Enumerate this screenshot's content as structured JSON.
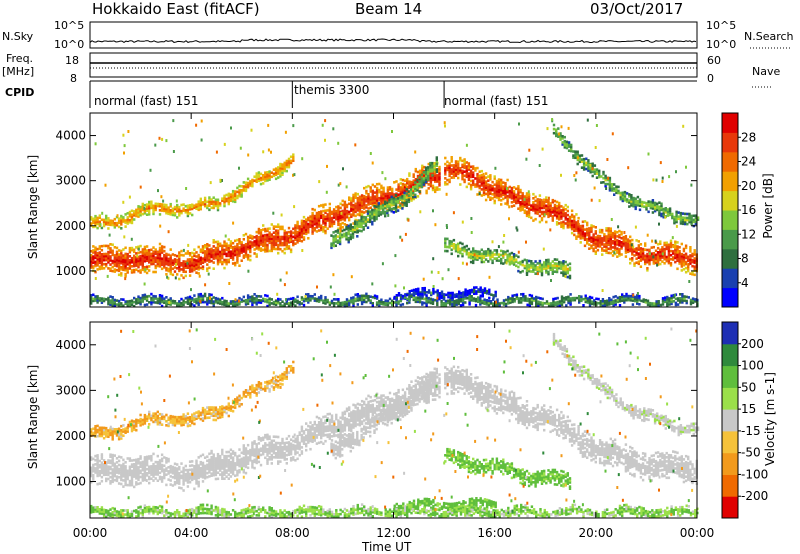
{
  "header": {
    "title": "Hokkaido East (fitACF)",
    "beam": "Beam 14",
    "date": "03/Oct/2017"
  },
  "strips": {
    "nsky_label": "N.Sky",
    "nsearch_label": "N.Search",
    "freq_label_1": "Freq.",
    "freq_label_2": "[MHz]",
    "nave_label": "Nave",
    "cpid_label": "CPID",
    "nsky_ticks": [
      "10^5",
      "10^0"
    ],
    "nsearch_ticks": [
      "10^5",
      "10^0"
    ],
    "freq_ticks": [
      "18",
      "8"
    ],
    "nave_ticks": [
      "60",
      "0"
    ],
    "cpid_segments": [
      {
        "label": "normal (fast) 151",
        "start_hour": 0
      },
      {
        "label": "themis 3300",
        "start_hour": 8
      },
      {
        "label": "normal (fast) 151",
        "start_hour": 14
      }
    ]
  },
  "chart_data": [
    {
      "type": "heatmap",
      "panel": "power",
      "ylabel": "Slant Range [km]",
      "xlabel": "Time UT",
      "xlim": [
        0,
        24
      ],
      "ylim": [
        200,
        4500
      ],
      "xticks": [
        "00:00",
        "04:00",
        "08:00",
        "12:00",
        "16:00",
        "20:00",
        "00:00"
      ],
      "yticks": [
        "1000",
        "2000",
        "3000",
        "4000"
      ],
      "colorbar_label": "Power [dB]",
      "colorbar_ticks": [
        "28",
        "24",
        "20",
        "16",
        "12",
        "8",
        "4"
      ],
      "colorbar_range": [
        0,
        30
      ],
      "colors": [
        "#0000ff",
        "#1a40b0",
        "#2f6f3f",
        "#4a9a4a",
        "#7ec83c",
        "#d7d21d",
        "#f2a000",
        "#f06a00",
        "#e8380a",
        "#e00000"
      ],
      "bands": [
        {
          "t": [
            0,
            2,
            4,
            6,
            8,
            10,
            12,
            13.8
          ],
          "r": [
            1200,
            1250,
            1150,
            1500,
            1800,
            2300,
            2700,
            3100
          ],
          "width": 320,
          "level": 27
        },
        {
          "t": [
            0,
            1,
            2,
            3,
            4,
            5,
            6,
            7,
            8
          ],
          "r": [
            2000,
            2100,
            2300,
            2400,
            2350,
            2500,
            2800,
            3100,
            3500
          ],
          "width": 150,
          "level": 22
        },
        {
          "t": [
            14,
            15,
            16,
            17,
            18,
            19,
            20,
            21,
            22,
            24
          ],
          "r": [
            3200,
            3100,
            2800,
            2500,
            2400,
            2000,
            1700,
            1500,
            1350,
            1250
          ],
          "width": 300,
          "level": 27
        },
        {
          "t": [
            14,
            15,
            16,
            17,
            18,
            19
          ],
          "r": [
            1500,
            1400,
            1300,
            1150,
            1050,
            1000
          ],
          "width": 170,
          "level": 16
        },
        {
          "t": [
            18.3,
            19,
            20,
            21,
            22,
            24
          ],
          "r": [
            4100,
            3700,
            3100,
            2700,
            2400,
            2100
          ],
          "width": 150,
          "level": 14
        },
        {
          "t": [
            9.5,
            10.5,
            11.5,
            12.5,
            13.7
          ],
          "r": [
            1600,
            2000,
            2300,
            2700,
            3300
          ],
          "width": 200,
          "level": 14
        },
        {
          "t": [
            12,
            13,
            14,
            15,
            16
          ],
          "r": [
            480,
            470,
            480,
            490,
            480
          ],
          "width": 110,
          "level": 6
        },
        {
          "t": [
            0,
            4,
            8,
            12,
            16,
            20,
            24
          ],
          "r": [
            300,
            310,
            300,
            320,
            300,
            310,
            300
          ],
          "width": 120,
          "level": 11
        }
      ]
    },
    {
      "type": "heatmap",
      "panel": "velocity",
      "ylabel": "Slant Range [km]",
      "xlabel": "Time UT",
      "xlim": [
        0,
        24
      ],
      "ylim": [
        200,
        4500
      ],
      "xticks": [
        "00:00",
        "04:00",
        "08:00",
        "12:00",
        "16:00",
        "20:00",
        "00:00"
      ],
      "yticks": [
        "1000",
        "2000",
        "3000",
        "4000"
      ],
      "colorbar_label": "Velocity [m s-1]",
      "colorbar_ticks": [
        "200",
        "100",
        "50",
        "15",
        "-15",
        "-50",
        "-100",
        "-200"
      ],
      "colors": [
        "#1e2fb4",
        "#2f8a3c",
        "#5fbe3c",
        "#9be04a",
        "#c8c8c8",
        "#f5c23a",
        "#f29a1c",
        "#f06a00",
        "#e00000"
      ],
      "bands": [
        {
          "t": [
            0,
            2,
            4,
            6,
            8,
            10,
            12,
            13.8
          ],
          "r": [
            1200,
            1250,
            1150,
            1500,
            1800,
            2300,
            2700,
            3100
          ],
          "width": 320,
          "level": 0
        },
        {
          "t": [
            0,
            1,
            2,
            3,
            4,
            5,
            6,
            7,
            8
          ],
          "r": [
            2000,
            2100,
            2300,
            2400,
            2350,
            2500,
            2800,
            3100,
            3500
          ],
          "width": 150,
          "level": -30
        },
        {
          "t": [
            14,
            15,
            16,
            17,
            18,
            19,
            20,
            21,
            22,
            24
          ],
          "r": [
            3200,
            3100,
            2800,
            2500,
            2400,
            2000,
            1700,
            1500,
            1350,
            1250
          ],
          "width": 300,
          "level": 0
        },
        {
          "t": [
            14,
            15,
            16,
            17,
            18,
            19
          ],
          "r": [
            1500,
            1400,
            1300,
            1150,
            1050,
            1000
          ],
          "width": 170,
          "level": 40
        },
        {
          "t": [
            18.3,
            19,
            20,
            21,
            22,
            24
          ],
          "r": [
            4100,
            3700,
            3100,
            2700,
            2400,
            2100
          ],
          "width": 150,
          "level": 5
        },
        {
          "t": [
            9.5,
            10.5,
            11.5,
            12.5,
            13.7
          ],
          "r": [
            1600,
            2000,
            2300,
            2700,
            3300
          ],
          "width": 200,
          "level": 0
        },
        {
          "t": [
            12,
            13,
            14,
            15,
            16
          ],
          "r": [
            480,
            470,
            480,
            490,
            480
          ],
          "width": 110,
          "level": 45
        },
        {
          "t": [
            0,
            4,
            8,
            12,
            16,
            20,
            24
          ],
          "r": [
            300,
            310,
            300,
            320,
            300,
            310,
            300
          ],
          "width": 120,
          "level": 30
        }
      ]
    }
  ]
}
